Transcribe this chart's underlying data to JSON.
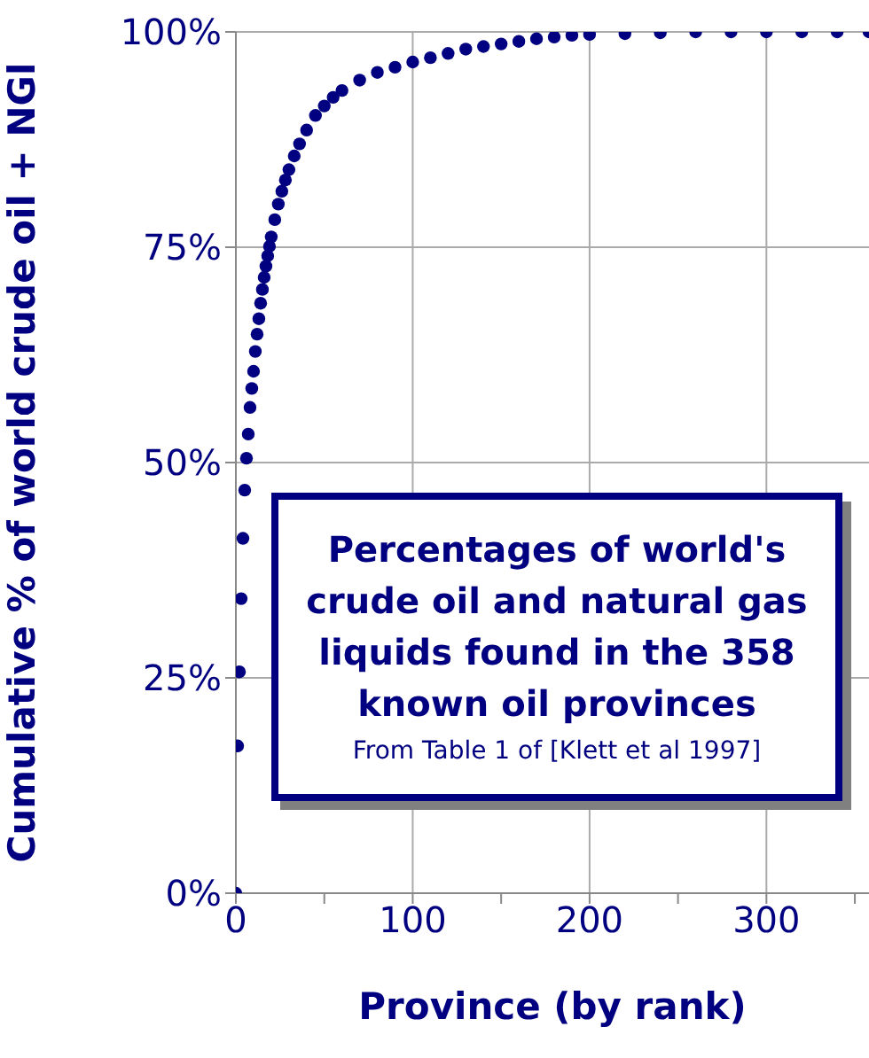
{
  "chart_data": {
    "type": "scatter",
    "xlabel": "Province (by rank)",
    "ylabel": "Cumulative % of world crude oil + NGl",
    "annotations": [
      "Percentages of world's crude oil and natural gas liquids found in the 358 known oil provinces",
      "From Table 1 of [Klett et al 1997]"
    ],
    "x": [
      0,
      1,
      2,
      3,
      4,
      5,
      6,
      7,
      8,
      9,
      10,
      11,
      12,
      13,
      14,
      15,
      16,
      17,
      18,
      19,
      20,
      22,
      24,
      26,
      28,
      30,
      33,
      36,
      40,
      45,
      50,
      55,
      60,
      70,
      80,
      90,
      100,
      110,
      120,
      130,
      140,
      150,
      160,
      170,
      180,
      190,
      200,
      220,
      240,
      260,
      280,
      300,
      320,
      340,
      358
    ],
    "series": [
      {
        "color": "#000080",
        "values": [
          0,
          17.1,
          25.7,
          34.2,
          41.2,
          46.8,
          50.5,
          53.3,
          56.4,
          58.6,
          60.6,
          62.9,
          64.9,
          66.7,
          68.5,
          70.1,
          71.5,
          72.8,
          74,
          75.1,
          76.2,
          78.2,
          80,
          81.5,
          82.8,
          84,
          85.6,
          87,
          88.6,
          90.3,
          91.4,
          92.4,
          93.2,
          94.4,
          95.3,
          95.9,
          96.5,
          97,
          97.5,
          98,
          98.3,
          98.6,
          98.9,
          99.2,
          99.4,
          99.6,
          99.7,
          99.8,
          99.9,
          100,
          100,
          100,
          100,
          100,
          100
        ]
      }
    ],
    "xlim": [
      0,
      358
    ],
    "xticks": [
      0,
      {
        "value": 50,
        "label": null
      },
      100,
      {
        "value": 150,
        "label": null
      },
      200,
      {
        "value": 250,
        "label": null
      },
      300,
      {
        "value": 350,
        "label": null
      }
    ],
    "ylim": [
      0,
      100
    ],
    "yticks": [
      {
        "value": 0,
        "label": "0%"
      },
      {
        "value": 25,
        "label": "25%"
      },
      {
        "value": 50,
        "label": "50%"
      },
      {
        "value": 75,
        "label": "75%"
      },
      {
        "value": 100,
        "label": "100%"
      }
    ],
    "grid": true,
    "marker": "circle"
  }
}
